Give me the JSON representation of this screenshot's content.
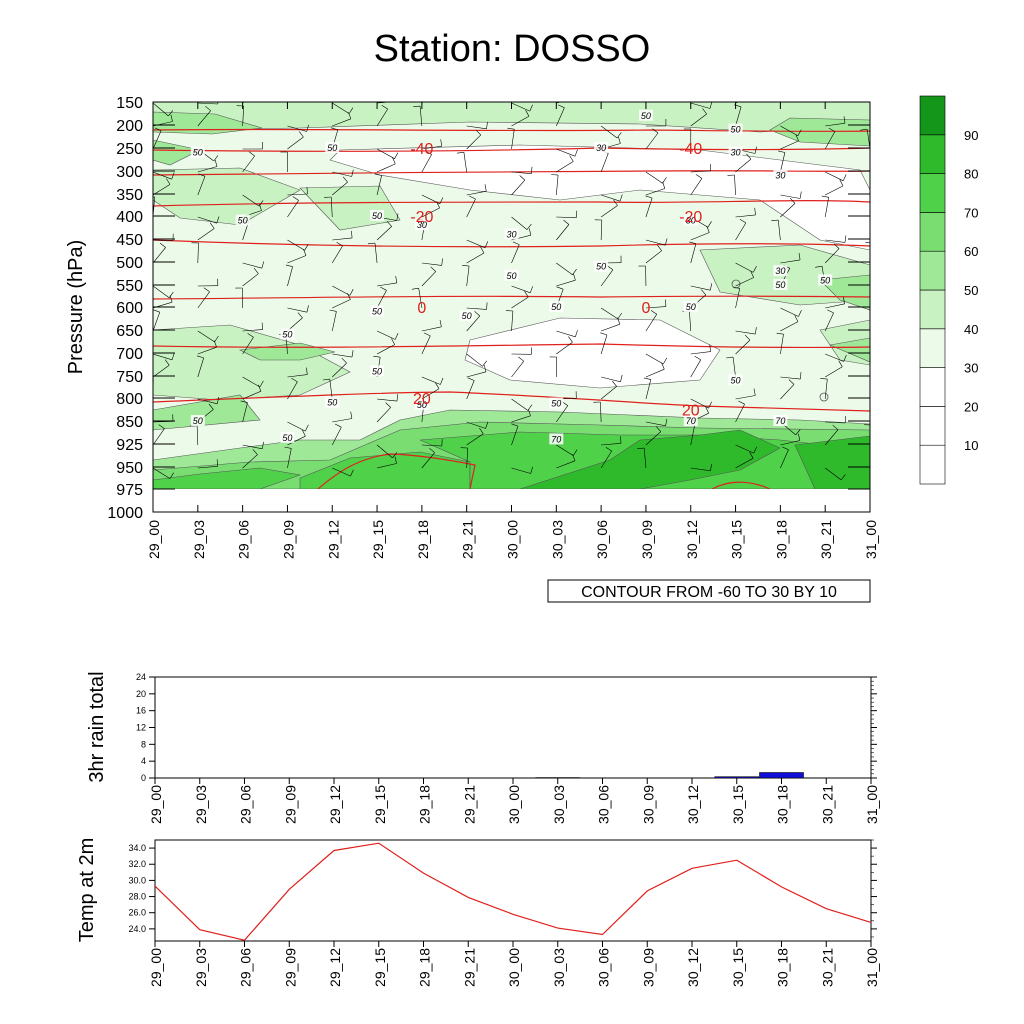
{
  "title": "Station: DOSSO",
  "time_labels": [
    "29_00",
    "29_03",
    "29_06",
    "29_09",
    "29_12",
    "29_15",
    "29_18",
    "29_21",
    "30_00",
    "30_03",
    "30_06",
    "30_09",
    "30_12",
    "30_15",
    "30_18",
    "30_21",
    "31_00"
  ],
  "colors": {
    "rh_fill": [
      "#ffffff",
      "#ffffff",
      "#ffffff",
      "#ecfbe9",
      "#c8f2c2",
      "#9fe898",
      "#79dd72",
      "#4fd24a",
      "#2fba2c",
      "#14961a"
    ],
    "temp_contour": "#e0201c",
    "rain_bar": "#1010d8",
    "temp_line": "#e0201c"
  },
  "chart_data": [
    {
      "type": "heatmap",
      "title": "Station: DOSSO",
      "ylabel": "Pressure (hPa)",
      "y_ticks": [
        150,
        200,
        250,
        300,
        350,
        400,
        450,
        500,
        550,
        600,
        650,
        700,
        750,
        800,
        850,
        925,
        950,
        975,
        1000
      ],
      "x_ticks": [
        "29_00",
        "29_03",
        "29_06",
        "29_09",
        "29_12",
        "29_15",
        "29_18",
        "29_21",
        "30_00",
        "30_03",
        "30_06",
        "30_09",
        "30_12",
        "30_15",
        "30_18",
        "30_21",
        "31_00"
      ],
      "colorbar": {
        "levels": [
          10,
          20,
          30,
          40,
          50,
          60,
          70,
          80,
          90
        ]
      },
      "info_label": "CONTOUR FROM -60 TO 30 BY 10",
      "temperature_contour_labels": [
        {
          "label": "-40",
          "time": "29_18",
          "pressure": 250
        },
        {
          "label": "-40",
          "time": "30_12",
          "pressure": 250
        },
        {
          "label": "-20",
          "time": "29_18",
          "pressure": 400
        },
        {
          "label": "-20",
          "time": "30_12",
          "pressure": 400
        },
        {
          "label": "0",
          "time": "29_18",
          "pressure": 600
        },
        {
          "label": "0",
          "time": "30_09",
          "pressure": 600
        },
        {
          "label": "20",
          "time": "29_18",
          "pressure": 800
        },
        {
          "label": "20",
          "time": "30_12",
          "pressure": 825
        }
      ],
      "rh_contour_labels": [
        {
          "label": "50",
          "time": "29_03",
          "pressure": 260
        },
        {
          "label": "50",
          "time": "29_12",
          "pressure": 250
        },
        {
          "label": "30",
          "time": "30_06",
          "pressure": 250
        },
        {
          "label": "50",
          "time": "30_09",
          "pressure": 180
        },
        {
          "label": "50",
          "time": "30_15",
          "pressure": 210
        },
        {
          "label": "30",
          "time": "30_15",
          "pressure": 260
        },
        {
          "label": "30",
          "time": "30_18",
          "pressure": 310
        },
        {
          "label": "50",
          "time": "29_06",
          "pressure": 410
        },
        {
          "label": "50",
          "time": "29_15",
          "pressure": 400
        },
        {
          "label": "30",
          "time": "29_18",
          "pressure": 420
        },
        {
          "label": "30",
          "time": "30_00",
          "pressure": 440
        },
        {
          "label": "30",
          "time": "30_12",
          "pressure": 410
        },
        {
          "label": "30",
          "time": "30_18",
          "pressure": 520
        },
        {
          "label": "50",
          "time": "30_06",
          "pressure": 510
        },
        {
          "label": "50",
          "time": "30_00",
          "pressure": 530
        },
        {
          "label": "50",
          "time": "30_18",
          "pressure": 550
        },
        {
          "label": "50",
          "time": "30_21",
          "pressure": 540
        },
        {
          "label": "50",
          "time": "29_15",
          "pressure": 610
        },
        {
          "label": "50",
          "time": "29_21",
          "pressure": 620
        },
        {
          "label": "50",
          "time": "30_03",
          "pressure": 600
        },
        {
          "label": "50",
          "time": "30_12",
          "pressure": 600
        },
        {
          "label": "50",
          "time": "29_09",
          "pressure": 660
        },
        {
          "label": "50",
          "time": "29_15",
          "pressure": 740
        },
        {
          "label": "50",
          "time": "30_15",
          "pressure": 760
        },
        {
          "label": "50",
          "time": "29_03",
          "pressure": 850
        },
        {
          "label": "50",
          "time": "29_12",
          "pressure": 810
        },
        {
          "label": "50",
          "time": "29_18",
          "pressure": 815
        },
        {
          "label": "50",
          "time": "30_03",
          "pressure": 812
        },
        {
          "label": "50",
          "time": "29_09",
          "pressure": 905
        },
        {
          "label": "70",
          "time": "30_03",
          "pressure": 910
        },
        {
          "label": "70",
          "time": "30_12",
          "pressure": 850
        },
        {
          "label": "70",
          "time": "30_18",
          "pressure": 850
        }
      ]
    },
    {
      "type": "bar",
      "ylabel": "3hr rain total",
      "categories": [
        "29_00",
        "29_03",
        "29_06",
        "29_09",
        "29_12",
        "29_15",
        "29_18",
        "29_21",
        "30_00",
        "30_03",
        "30_06",
        "30_09",
        "30_12",
        "30_15",
        "30_18",
        "30_21",
        "31_00"
      ],
      "values": [
        0,
        0,
        0,
        0,
        0,
        0,
        0,
        0,
        0,
        0.1,
        0,
        0,
        0,
        0.3,
        1.3,
        0,
        0
      ],
      "ylim": [
        0,
        24
      ],
      "y_ticks": [
        "0",
        "4",
        "8",
        "12",
        "16",
        "20",
        "24"
      ]
    },
    {
      "type": "line",
      "ylabel": "Temp at 2m",
      "x": [
        "29_00",
        "29_03",
        "29_06",
        "29_09",
        "29_12",
        "29_15",
        "29_18",
        "29_21",
        "30_00",
        "30_03",
        "30_06",
        "30_09",
        "30_12",
        "30_15",
        "30_18",
        "30_21",
        "31_00"
      ],
      "values": [
        29.3,
        23.9,
        22.6,
        28.9,
        33.7,
        34.6,
        30.9,
        27.9,
        25.8,
        24.1,
        23.3,
        28.7,
        31.5,
        32.5,
        29.2,
        26.5,
        24.8
      ],
      "ylim": [
        22.5,
        35.0
      ],
      "y_ticks": [
        "24.0",
        "26.0",
        "28.0",
        "30.0",
        "32.0",
        "34.0"
      ]
    }
  ]
}
